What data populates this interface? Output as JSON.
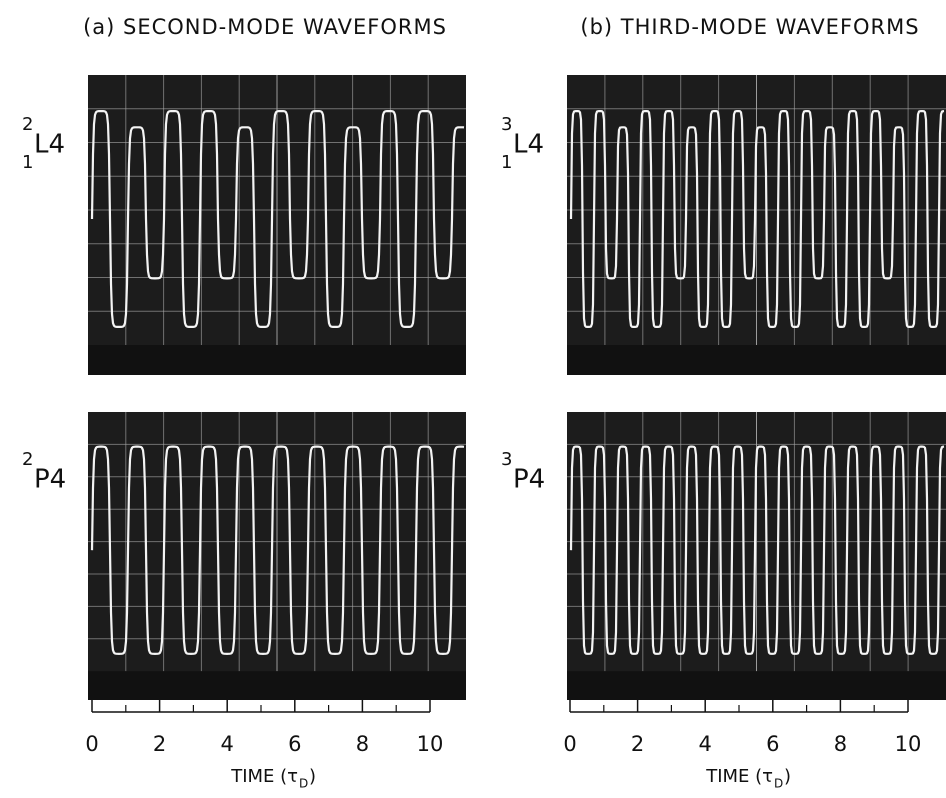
{
  "columns": [
    {
      "title": "(a) SECOND-MODE WAVEFORMS",
      "rows": [
        {
          "sup": "2",
          "sub": "1",
          "main": "L4"
        },
        {
          "sup": "2",
          "main": "P4"
        }
      ],
      "xticks": [
        0,
        2,
        4,
        6,
        8,
        10
      ],
      "xlabel": {
        "main": "TIME (τ",
        "sub": "D",
        "end": ")"
      }
    },
    {
      "title": "(b) THIRD-MODE WAVEFORMS",
      "rows": [
        {
          "sup": "3",
          "sub": "1",
          "main": "L4"
        },
        {
          "sup": "3",
          "main": "P4"
        }
      ],
      "xticks": [
        0,
        2,
        4,
        6,
        8,
        10
      ],
      "xlabel": {
        "main": "TIME (τ",
        "sub": "D",
        "end": ")"
      }
    }
  ]
}
